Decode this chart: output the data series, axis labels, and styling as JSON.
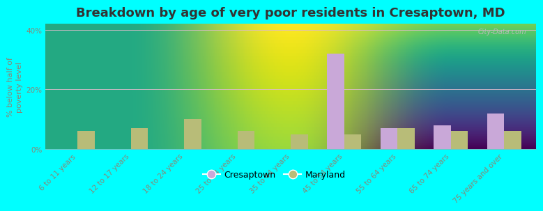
{
  "title": "Breakdown by age of very poor residents in Cresaptown, MD",
  "ylabel": "% below half of\npoverty level",
  "categories": [
    "6 to 11 years",
    "12 to 17 years",
    "18 to 24 years",
    "25 to 34 years",
    "35 to 44 years",
    "45 to 54 years",
    "55 to 64 years",
    "65 to 74 years",
    "75 years and over"
  ],
  "cresaptown": [
    0,
    0,
    0,
    0,
    0,
    32,
    7,
    8,
    12
  ],
  "maryland": [
    6,
    7,
    10,
    6,
    5,
    5,
    7,
    6,
    6
  ],
  "cresaptown_color": "#c9a8d8",
  "maryland_color": "#b8bc78",
  "bg_top": "#e8f5ee",
  "bg_bottom": "#e8f0d4",
  "outer_bg": "#00ffff",
  "ylim": [
    0,
    42
  ],
  "yticks": [
    0,
    20,
    40
  ],
  "ytick_labels": [
    "0%",
    "20%",
    "40%"
  ],
  "bar_width": 0.32,
  "title_fontsize": 13,
  "axis_label_fontsize": 8,
  "tick_fontsize": 7.5,
  "legend_fontsize": 9,
  "watermark": "City-Data.com"
}
